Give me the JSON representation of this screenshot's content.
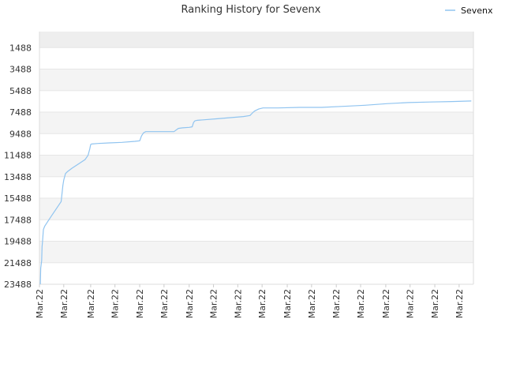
{
  "chart_data": {
    "type": "line",
    "title": "Ranking History for Sevenx",
    "legend": {
      "position": "top-right"
    },
    "y_reversed": true,
    "ylim": [
      0,
      23488
    ],
    "yticks": [
      1488,
      3488,
      5488,
      7488,
      9488,
      11488,
      13488,
      15488,
      17488,
      19488,
      21488,
      23488
    ],
    "xlim": [
      0,
      100
    ],
    "x_tick_labels": [
      "Mar.22",
      "Mar.22",
      "Mar.22",
      "Mar.22",
      "Mar.22",
      "Mar.22",
      "Mar.22",
      "Mar.22",
      "Mar.22",
      "Mar.22",
      "Mar.22",
      "Mar.22",
      "Mar.22",
      "Mar.22",
      "Mar.22",
      "Mar.22",
      "Mar.22",
      "Mar.22"
    ],
    "x_tick_positions": [
      0,
      5.6,
      11.8,
      17.4,
      23.1,
      28.7,
      34.5,
      40.1,
      45.7,
      51.3,
      57.1,
      62.7,
      68.4,
      74.0,
      79.8,
      85.4,
      91.1,
      96.7
    ],
    "grid": true,
    "colors": {
      "line": "#90c4f0",
      "band": "#f4f4f4",
      "band_top": "#eeeeee"
    },
    "series": [
      {
        "name": "Sevenx",
        "x": [
          0.2,
          0.3,
          0.5,
          0.6,
          0.7,
          0.9,
          1.2,
          2.0,
          3.0,
          4.0,
          5.0,
          5.4,
          5.6,
          6.0,
          6.5,
          7.5,
          9.0,
          10.5,
          11.2,
          11.6,
          11.8,
          12.0,
          13.5,
          16.0,
          19.0,
          22.0,
          23.1,
          23.5,
          24.0,
          24.5,
          25.0,
          27.0,
          31.0,
          32.0,
          33.0,
          34.5,
          35.2,
          35.5,
          35.8,
          36.3,
          38.0,
          41.0,
          44.0,
          47.0,
          48.5,
          49.0,
          49.5,
          50.5,
          51.5,
          55.0,
          60.0,
          65.0,
          70.0,
          75.0,
          80.0,
          85.0,
          90.0,
          95.0,
          99.5
        ],
        "values": [
          23488,
          22000,
          21300,
          20000,
          19500,
          18400,
          18100,
          17600,
          17000,
          16400,
          15800,
          14300,
          13800,
          13200,
          13000,
          12700,
          12300,
          11900,
          11500,
          10900,
          10500,
          10450,
          10400,
          10350,
          10300,
          10200,
          10150,
          9700,
          9400,
          9300,
          9300,
          9300,
          9300,
          9000,
          8950,
          8900,
          8850,
          8450,
          8300,
          8250,
          8200,
          8100,
          8000,
          7900,
          7800,
          7600,
          7400,
          7200,
          7100,
          7100,
          7050,
          7050,
          6950,
          6850,
          6700,
          6600,
          6550,
          6500,
          6450
        ]
      }
    ]
  }
}
